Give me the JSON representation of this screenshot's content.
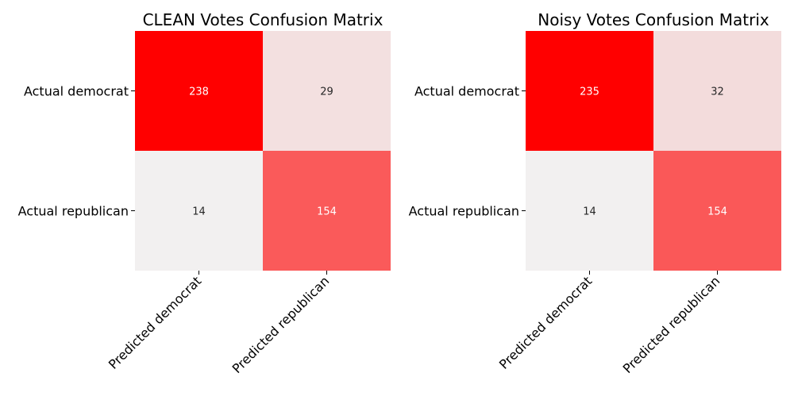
{
  "chart_data": [
    {
      "type": "heatmap",
      "title": "CLEAN Votes Confusion Matrix",
      "x_categories": [
        "Predicted democrat",
        "Predicted republican"
      ],
      "y_categories": [
        "Actual democrat",
        "Actual republican"
      ],
      "values": [
        [
          238,
          29
        ],
        [
          14,
          154
        ]
      ],
      "colorbar": false,
      "colormap": {
        "low": "#f2f0f0",
        "high": "#ff0000"
      },
      "annotation_colors": {
        "dark_cell_text": "#ffffff",
        "light_cell_text": "#262626"
      }
    },
    {
      "type": "heatmap",
      "title": "Noisy Votes Confusion Matrix",
      "x_categories": [
        "Predicted democrat",
        "Predicted republican"
      ],
      "y_categories": [
        "Actual democrat",
        "Actual republican"
      ],
      "values": [
        [
          235,
          32
        ],
        [
          14,
          154
        ]
      ],
      "colorbar": false,
      "colormap": {
        "low": "#f2f0f0",
        "high": "#ff0000"
      },
      "annotation_colors": {
        "dark_cell_text": "#ffffff",
        "light_cell_text": "#262626"
      }
    }
  ]
}
